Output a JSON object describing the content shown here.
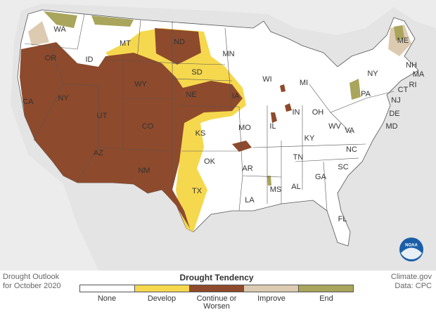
{
  "map": {
    "state_labels": [
      "WA",
      "OR",
      "CA",
      "NY",
      "ID",
      "MT",
      "WY",
      "UT",
      "AZ",
      "CO",
      "NM",
      "ND",
      "SD",
      "NE",
      "KS",
      "OK",
      "TX",
      "MN",
      "IA",
      "MO",
      "AR",
      "LA",
      "WI",
      "IL",
      "MS",
      "MI",
      "IN",
      "KY",
      "TN",
      "AL",
      "GA",
      "FL",
      "OH",
      "WV",
      "VA",
      "NC",
      "SC",
      "PA",
      "NY",
      "ME",
      "NH",
      "MA",
      "CT",
      "RI",
      "NJ",
      "DE",
      "MD"
    ],
    "logo": "NOAA"
  },
  "legend": {
    "title": "Drought Tendency",
    "items": [
      {
        "label": "None",
        "color": "#ffffff"
      },
      {
        "label": "Develop",
        "color": "#f6d84e"
      },
      {
        "label": "Continue or Worsen",
        "color": "#8e4a2c"
      },
      {
        "label": "Improve",
        "color": "#dccbb1"
      },
      {
        "label": "End",
        "color": "#a9a55c"
      }
    ]
  },
  "footer": {
    "left": [
      "Drought Outlook",
      "for October 2020"
    ],
    "right": [
      "Climate.gov",
      "Data: CPC"
    ]
  }
}
